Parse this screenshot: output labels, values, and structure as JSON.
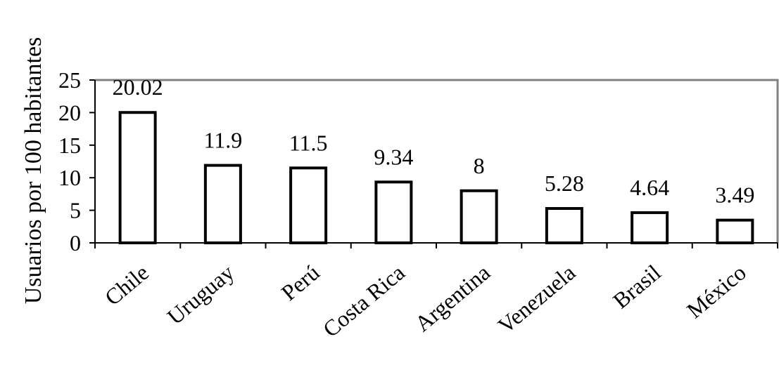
{
  "chart_data": {
    "type": "bar",
    "title": "",
    "xlabel": "",
    "ylabel": "Usuarios por 100 habitantes",
    "ylim": [
      0,
      25
    ],
    "y_ticks": [
      0,
      5,
      10,
      15,
      20,
      25
    ],
    "categories": [
      "Chile",
      "Uruguay",
      "Perú",
      "Costa Rica",
      "Argentina",
      "Venezuela",
      "Brasil",
      "México"
    ],
    "values": [
      20.02,
      11.9,
      11.5,
      9.34,
      8,
      5.28,
      4.64,
      3.49
    ],
    "data_labels": [
      "20.02",
      "11.9",
      "11.5",
      "9.34",
      "8",
      "5.28",
      "4.64",
      "3.49"
    ],
    "grid": false,
    "legend": "none",
    "colors": {
      "bar_fill": "#ffffff",
      "bar_stroke": "#000000",
      "axis": "#000000",
      "frame": "#808080"
    }
  }
}
